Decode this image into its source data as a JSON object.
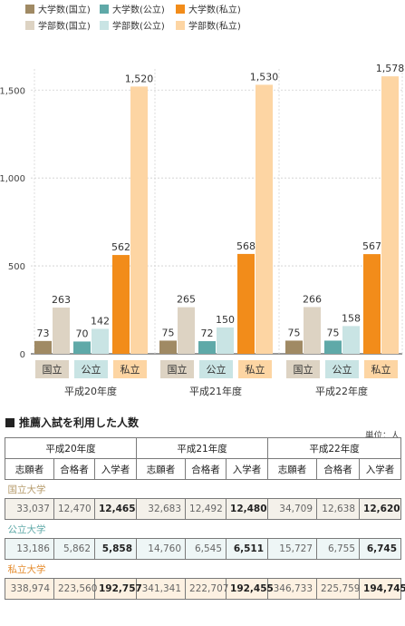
{
  "chart_data": {
    "type": "bar",
    "legend": [
      {
        "label": "大学数(国立)",
        "color": "#a08a64"
      },
      {
        "label": "大学数(公立)",
        "color": "#5fa9a8"
      },
      {
        "label": "大学数(私立)",
        "color": "#f28c1a"
      },
      {
        "label": "学部数(国立)",
        "color": "#ddd3c3"
      },
      {
        "label": "学部数(公立)",
        "color": "#c9e4e4"
      },
      {
        "label": "学部数(私立)",
        "color": "#fdd5a3"
      }
    ],
    "groups": [
      "平成20年度",
      "平成21年度",
      "平成22年度"
    ],
    "subgroup_labels": [
      "国立",
      "公立",
      "私立"
    ],
    "series": [
      {
        "name": "大学数(国立)",
        "values": [
          73,
          75,
          75
        ]
      },
      {
        "name": "学部数(国立)",
        "values": [
          263,
          265,
          266
        ]
      },
      {
        "name": "大学数(公立)",
        "values": [
          70,
          72,
          75
        ]
      },
      {
        "name": "学部数(公立)",
        "values": [
          142,
          150,
          158
        ]
      },
      {
        "name": "大学数(私立)",
        "values": [
          562,
          568,
          567
        ]
      },
      {
        "name": "学部数(私立)",
        "values": [
          1520,
          1530,
          1578
        ]
      }
    ],
    "data_labels": [
      [
        "73",
        "263",
        "70",
        "142",
        "562",
        "1,520"
      ],
      [
        "75",
        "265",
        "72",
        "150",
        "568",
        "1,530"
      ],
      [
        "75",
        "266",
        "75",
        "158",
        "567",
        "1,578"
      ]
    ],
    "y_ticks": [
      "0",
      "500",
      "1,000",
      "1,500"
    ],
    "y_tick_values": [
      0,
      500,
      1000,
      1500
    ],
    "ylim": [
      0,
      1620
    ],
    "grid": true
  },
  "table": {
    "title": "推薦入試を利用した人数",
    "unit": "単位：人",
    "years": [
      "平成20年度",
      "平成21年度",
      "平成22年度"
    ],
    "columns": [
      "志願者",
      "合格者",
      "入学者"
    ],
    "categories": [
      {
        "name": "国立大学",
        "values": [
          "33,037",
          "12,470",
          "12,465",
          "32,683",
          "12,492",
          "12,480",
          "34,709",
          "12,638",
          "12,620"
        ]
      },
      {
        "name": "公立大学",
        "values": [
          "13,186",
          "5,862",
          "5,858",
          "14,760",
          "6,545",
          "6,511",
          "15,727",
          "6,755",
          "6,745"
        ]
      },
      {
        "name": "私立大学",
        "values": [
          "338,974",
          "223,560",
          "192,757",
          "341,341",
          "222,707",
          "192,455",
          "346,733",
          "225,759",
          "194,745"
        ]
      }
    ]
  }
}
